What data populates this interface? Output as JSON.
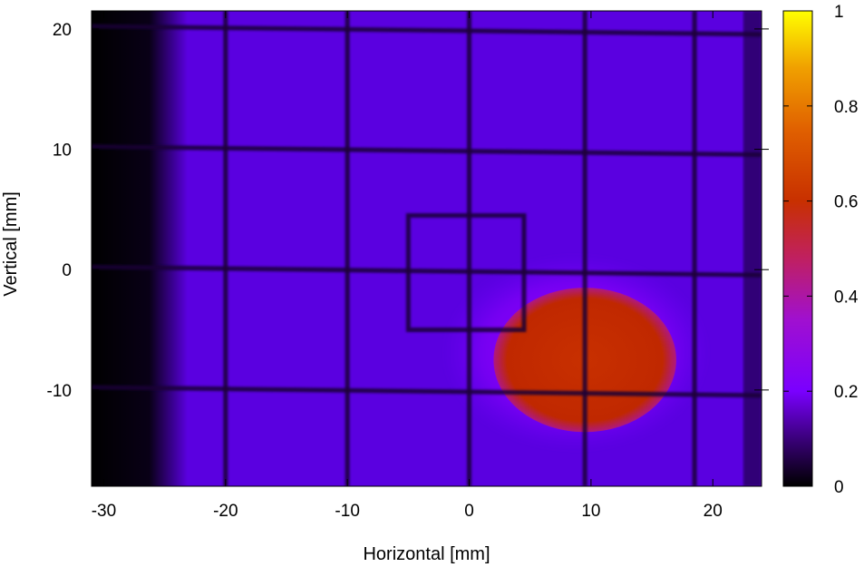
{
  "chart_data": {
    "type": "heatmap",
    "xlabel": "Horizontal [mm]",
    "ylabel": "Vertical [mm]",
    "xlim": [
      -31,
      24
    ],
    "ylim": [
      -18,
      21.5
    ],
    "x_ticks": [
      -30,
      -20,
      -10,
      0,
      10,
      20
    ],
    "y_ticks": [
      -10,
      0,
      10,
      20
    ],
    "colorbar": {
      "range": [
        0,
        1
      ],
      "ticks": [
        0,
        0.2,
        0.4,
        0.6,
        0.8,
        1
      ],
      "tick_labels": [
        "0",
        "0.2",
        "0.4",
        "0.6",
        "0.8",
        "1"
      ],
      "colormap": [
        "#000000",
        "#3a007a",
        "#7a00ff",
        "#b020c0",
        "#c83000",
        "#e06000",
        "#f0a000",
        "#ffff00"
      ]
    },
    "background_intensity": 0.17,
    "dark_edge_region_x": [
      -31,
      -24
    ],
    "beam_spot": {
      "center_x": 9.5,
      "center_y": -7.5,
      "width_x": 15,
      "height_y": 12,
      "peak_intensity": 0.55
    },
    "grid_wires": {
      "vertical_x": [
        -20,
        -10,
        0,
        9.5,
        18.5
      ],
      "horizontal_y": [
        20,
        10,
        0,
        -10
      ]
    },
    "inner_square": {
      "x": [
        -5,
        4.5
      ],
      "y": [
        -5,
        4.5
      ]
    }
  }
}
